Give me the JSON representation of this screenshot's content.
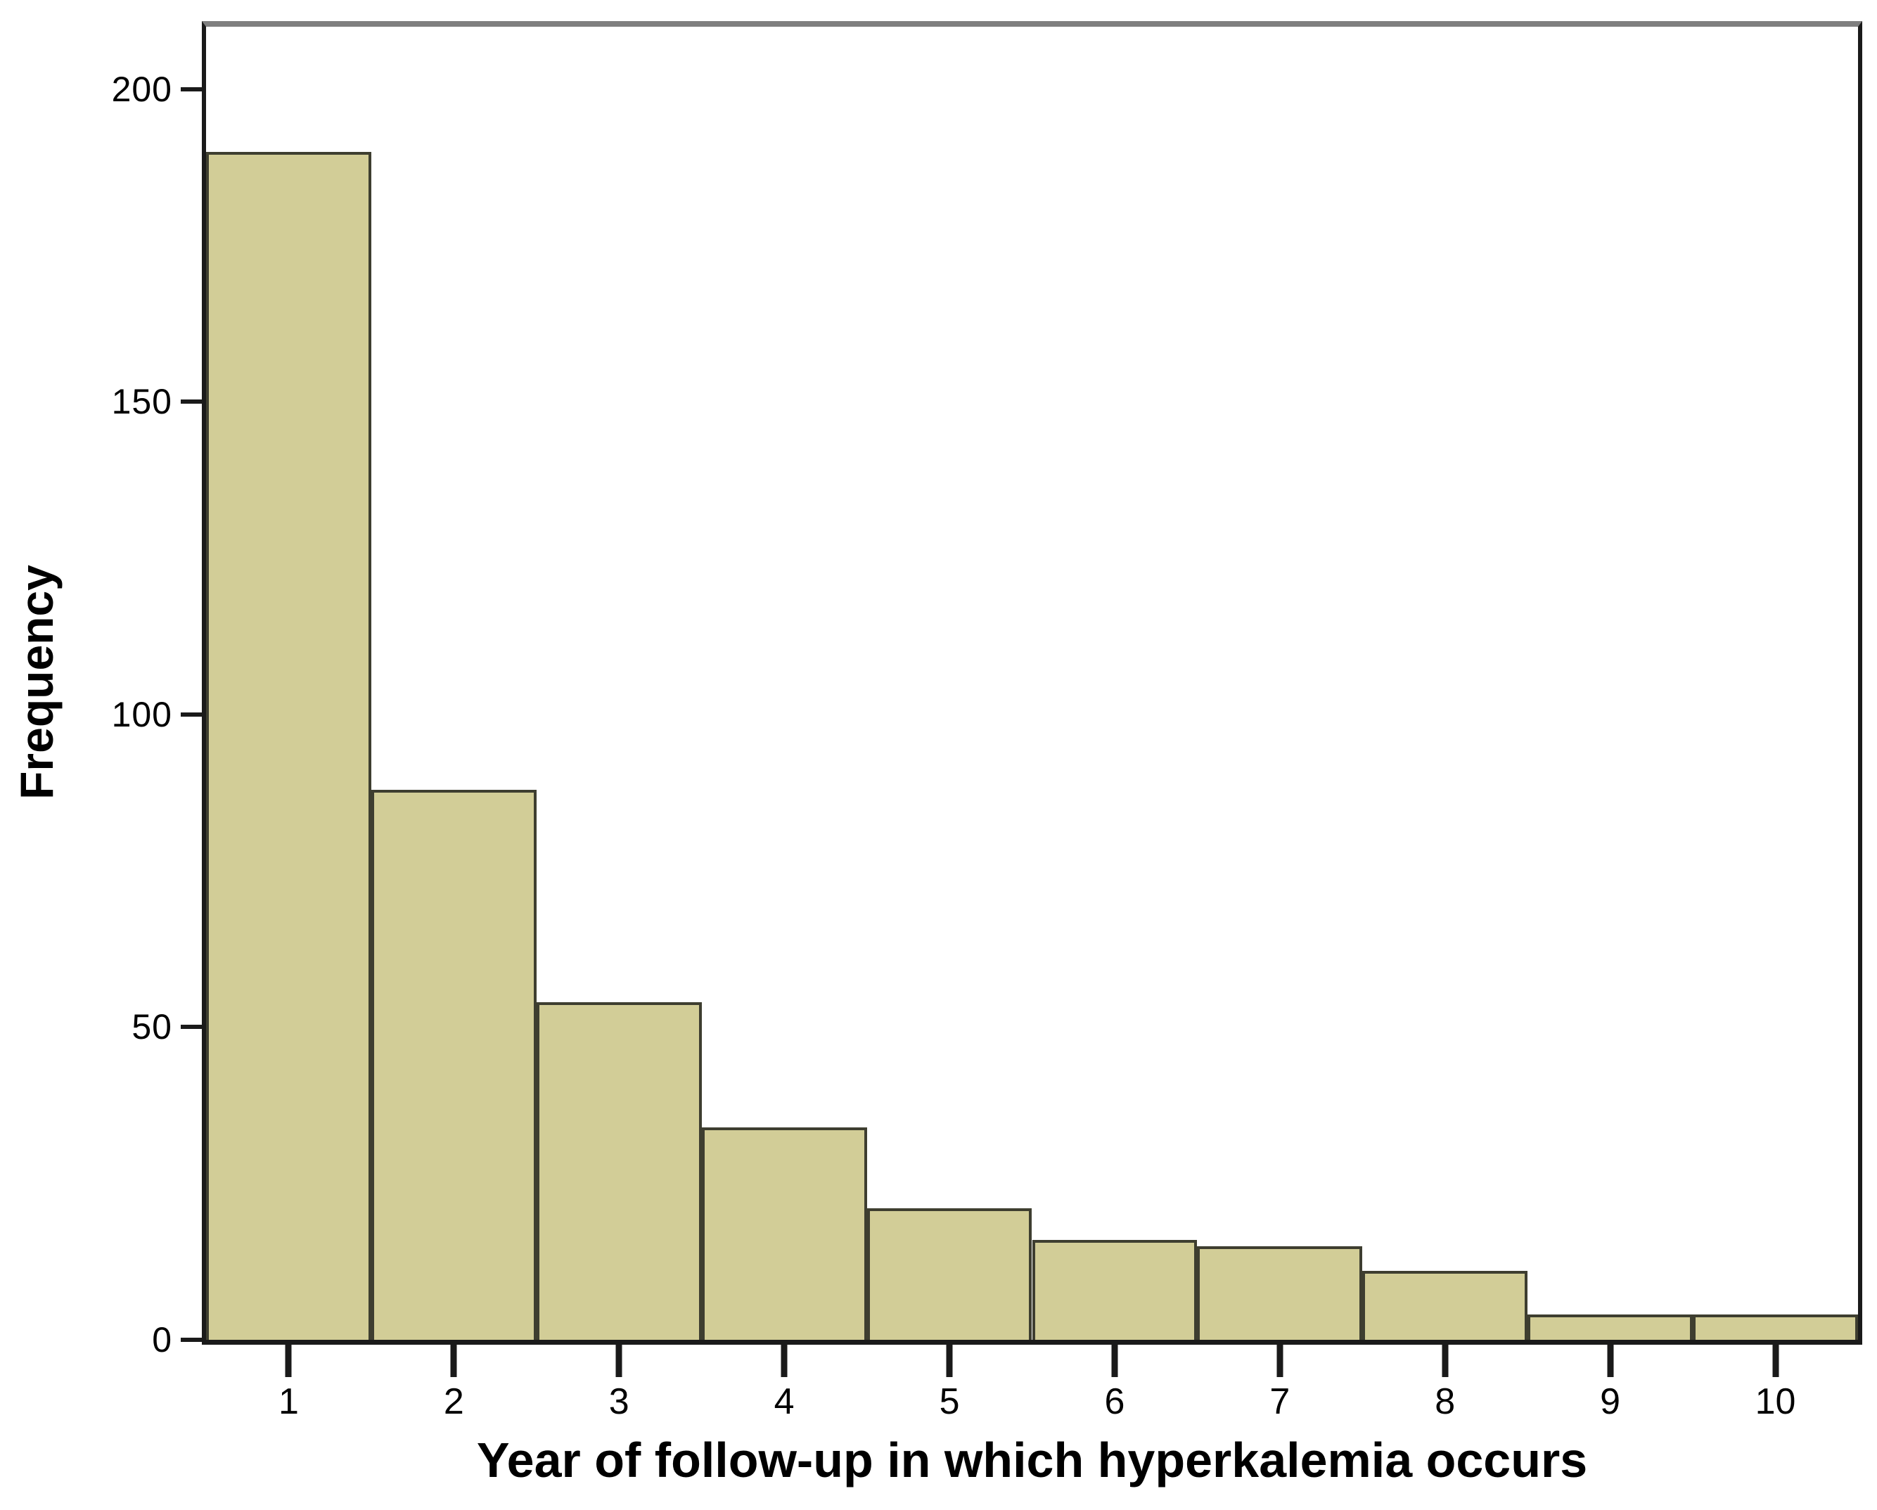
{
  "figure": {
    "background": "#ffffff"
  },
  "chart_data": {
    "type": "bar",
    "subtype": "histogram",
    "title": "",
    "xlabel": "Year of follow-up in which hyperkalemia occurs",
    "ylabel": "Frequency",
    "categories": [
      "1",
      "2",
      "3",
      "4",
      "5",
      "6",
      "7",
      "8",
      "9",
      "10"
    ],
    "values": [
      190,
      88,
      54,
      34,
      21,
      16,
      15,
      11,
      4,
      4
    ],
    "y_ticks": [
      0,
      50,
      100,
      150,
      200
    ],
    "ylim": [
      0,
      210
    ],
    "grid": false,
    "legend": "none",
    "colors": {
      "bar_fill": "#d2cd97",
      "bar_border": "#3e3e30",
      "axis": "#1a1a1a",
      "panel_top": "#7f7f7f",
      "text": "#000000"
    }
  }
}
